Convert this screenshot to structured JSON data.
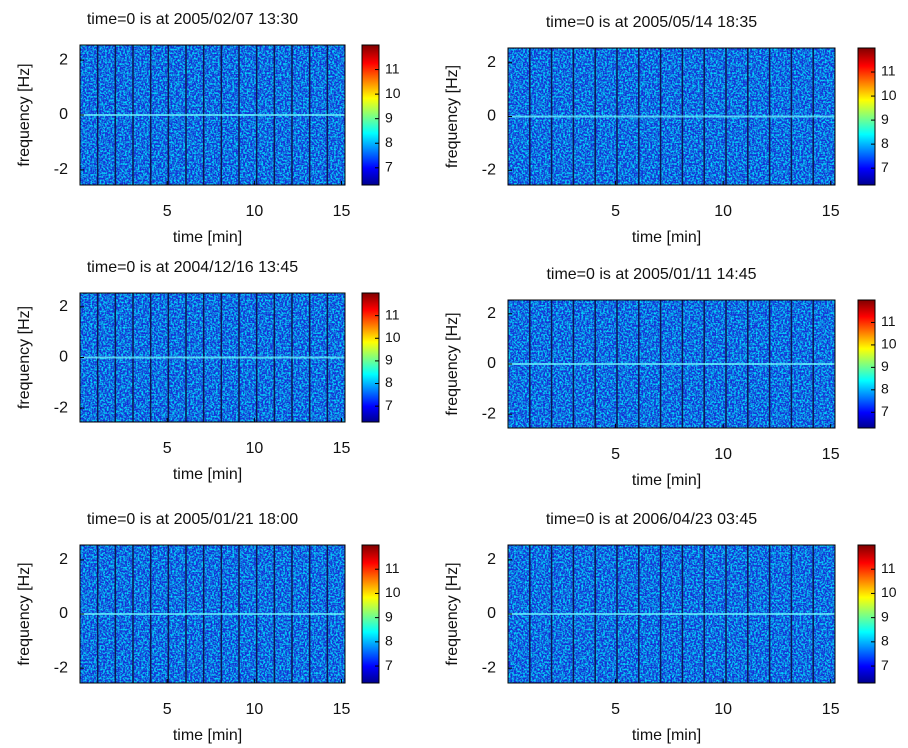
{
  "chart_data": [
    {
      "type": "spectrogram",
      "title": "time=0 is at 2005/02/07 13:30",
      "xlabel": "time [min]",
      "ylabel": "frequency [Hz]",
      "xlim": [
        0,
        15.2
      ],
      "xticks": [
        5,
        10,
        15
      ],
      "ylim": [
        -2.55,
        2.55
      ],
      "yticks": [
        2,
        0,
        -2
      ],
      "clim": [
        6.3,
        12
      ],
      "cticks": [
        11,
        10,
        9,
        8,
        7
      ],
      "colormap": "jet"
    },
    {
      "type": "spectrogram",
      "title": "time=0 is at 2005/05/14 18:35",
      "xlabel": "time [min]",
      "ylabel": "frequency [Hz]",
      "xlim": [
        0,
        15.2
      ],
      "xticks": [
        5,
        10,
        15
      ],
      "ylim": [
        -2.55,
        2.55
      ],
      "yticks": [
        2,
        0,
        -2
      ],
      "clim": [
        6.3,
        12
      ],
      "cticks": [
        11,
        10,
        9,
        8,
        7
      ],
      "colormap": "jet"
    },
    {
      "type": "spectrogram",
      "title": "time=0 is at 2004/12/16 13:45",
      "xlabel": "time [min]",
      "ylabel": "frequency [Hz]",
      "xlim": [
        0,
        15.2
      ],
      "xticks": [
        5,
        10,
        15
      ],
      "ylim": [
        -2.55,
        2.55
      ],
      "yticks": [
        2,
        0,
        -2
      ],
      "clim": [
        6.3,
        12
      ],
      "cticks": [
        11,
        10,
        9,
        8,
        7
      ],
      "colormap": "jet"
    },
    {
      "type": "spectrogram",
      "title": "time=0 is at 2005/01/11 14:45",
      "xlabel": "time [min]",
      "ylabel": "frequency [Hz]",
      "xlim": [
        0,
        15.2
      ],
      "xticks": [
        5,
        10,
        15
      ],
      "ylim": [
        -2.55,
        2.55
      ],
      "yticks": [
        2,
        0,
        -2
      ],
      "clim": [
        6.3,
        12
      ],
      "cticks": [
        11,
        10,
        9,
        8,
        7
      ],
      "colormap": "jet"
    },
    {
      "type": "spectrogram",
      "title": "time=0 is at 2005/01/21 18:00",
      "xlabel": "time [min]",
      "ylabel": "frequency [Hz]",
      "xlim": [
        0,
        15.2
      ],
      "xticks": [
        5,
        10,
        15
      ],
      "ylim": [
        -2.55,
        2.55
      ],
      "yticks": [
        2,
        0,
        -2
      ],
      "clim": [
        6.3,
        12
      ],
      "cticks": [
        11,
        10,
        9,
        8,
        7
      ],
      "colormap": "jet"
    },
    {
      "type": "spectrogram",
      "title": "time=0 is at 2006/04/23 03:45",
      "xlabel": "time [min]",
      "ylabel": "frequency [Hz]",
      "xlim": [
        0,
        15.2
      ],
      "xticks": [
        5,
        10,
        15
      ],
      "ylim": [
        -2.55,
        2.55
      ],
      "yticks": [
        2,
        0,
        -2
      ],
      "clim": [
        6.3,
        12
      ],
      "cticks": [
        11,
        10,
        9,
        8,
        7
      ],
      "colormap": "jet"
    }
  ]
}
